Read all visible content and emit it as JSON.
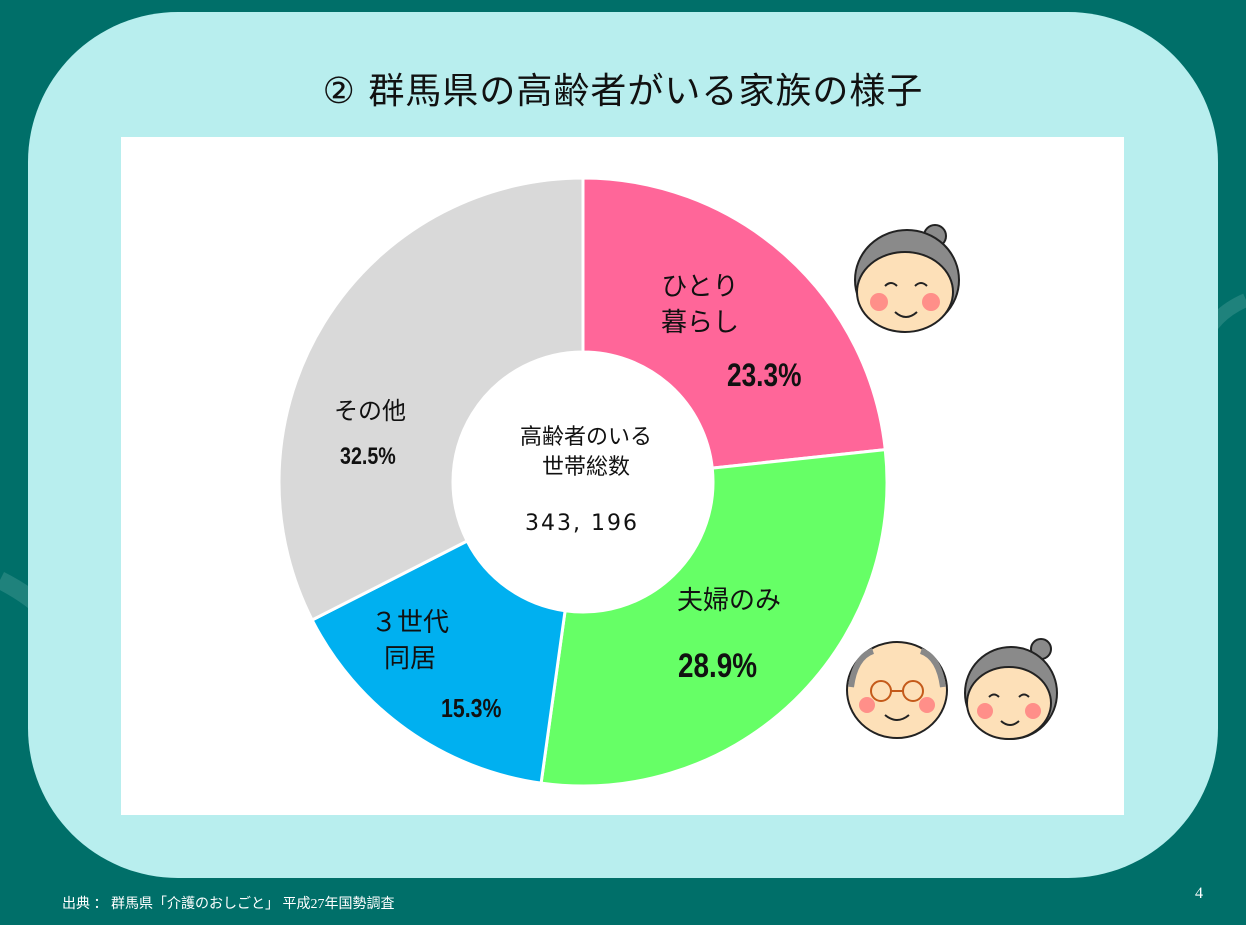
{
  "slide": {
    "title": "② 群馬県の高齢者がいる家族の様子",
    "source": "出典 ： 群馬県「介護のおしごと」 平成27年国勢調査",
    "page_number": "4"
  },
  "chart_data": {
    "type": "pie",
    "variant": "donut",
    "center_label_line1": "高齢者のいる",
    "center_label_line2": "世帯総数",
    "center_value": "343, 196",
    "slices": [
      {
        "label_line1": "ひとり",
        "label_line2": "暮らし",
        "value": 23.3,
        "value_label": "23.3%",
        "color": "#ff6699"
      },
      {
        "label_line1": "夫婦のみ",
        "label_line2": "",
        "value": 28.9,
        "value_label": "28.9%",
        "color": "#66ff66"
      },
      {
        "label_line1": "３世代",
        "label_line2": "同居",
        "value": 15.3,
        "value_label": "15.3%",
        "color": "#00b0f0"
      },
      {
        "label_line1": "その他",
        "label_line2": "",
        "value": 32.5,
        "value_label": "32.5%",
        "color": "#d9d9d9"
      }
    ]
  },
  "colors": {
    "background": "#006f69",
    "panel": "#b8eeee",
    "plot_area": "#ffffff"
  },
  "illustrations": [
    "elderly-woman-icon",
    "elderly-couple-icon"
  ]
}
